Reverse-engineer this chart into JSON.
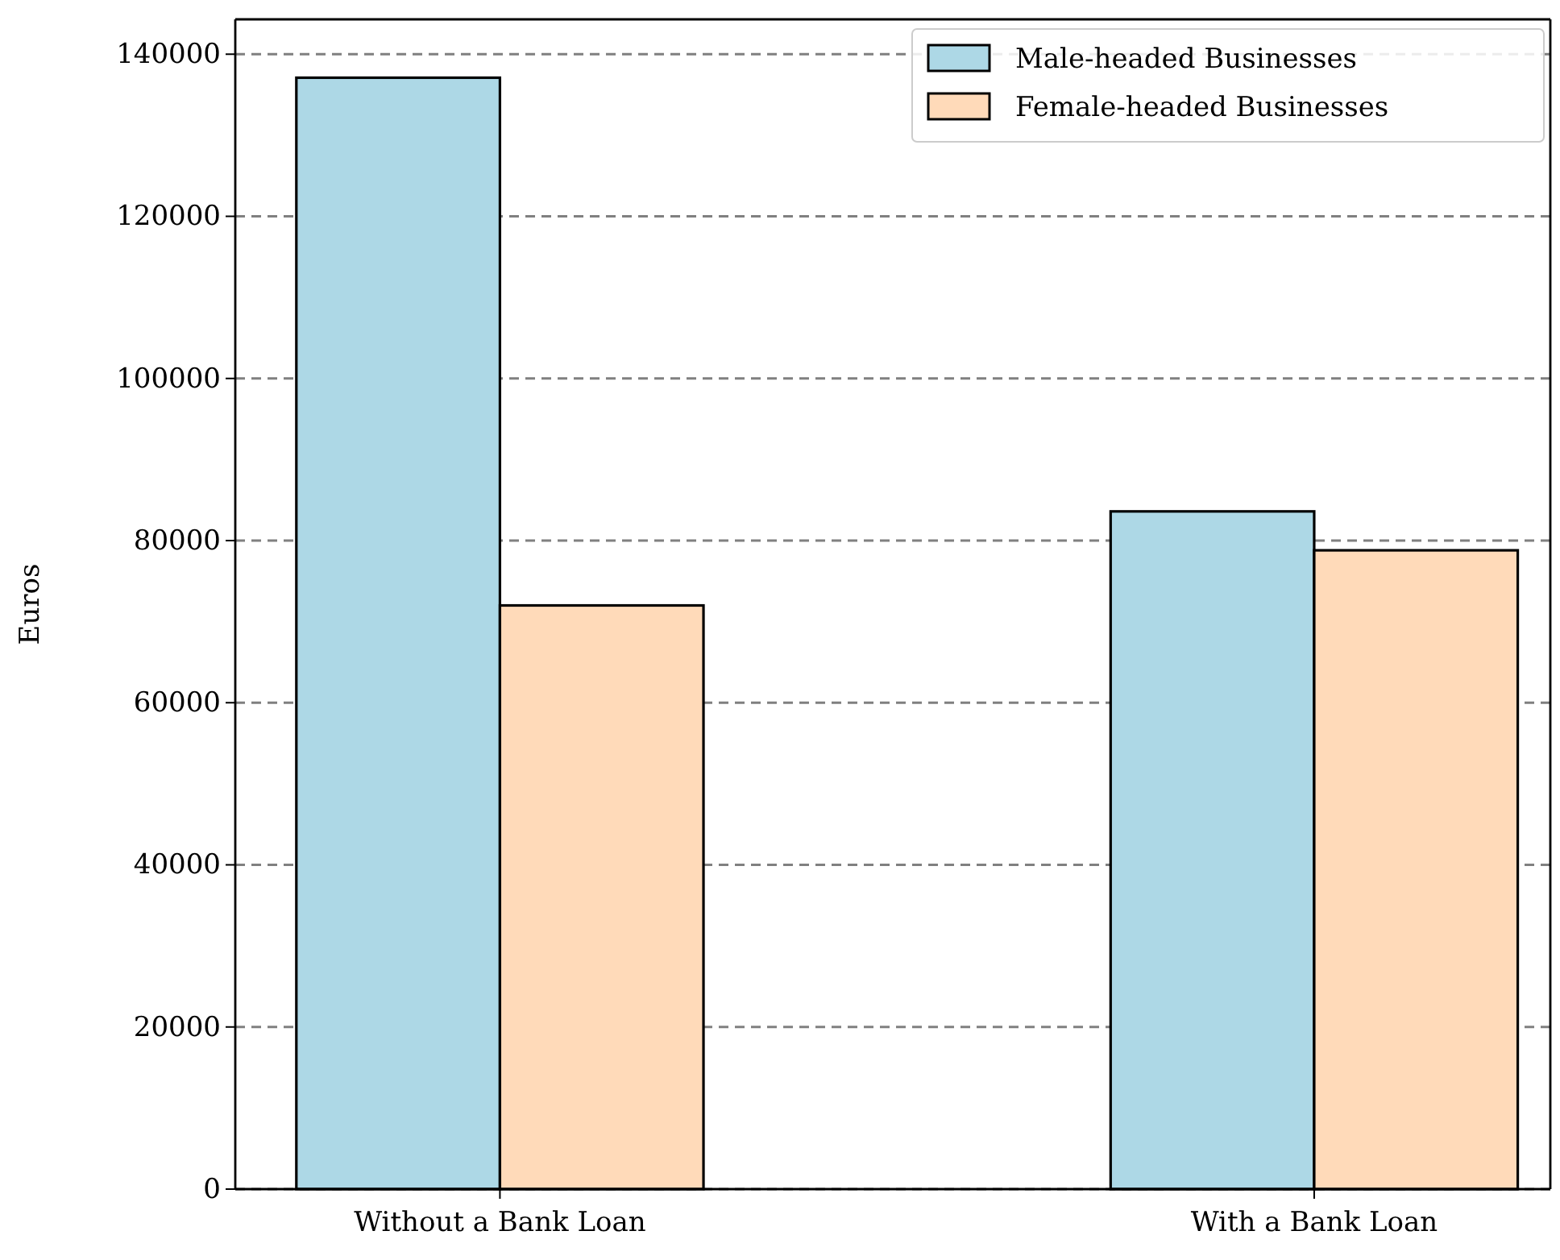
{
  "chart_data": {
    "type": "bar",
    "ylabel": "Euros",
    "categories": [
      "Without a Bank Loan",
      "With a Bank Loan"
    ],
    "series": [
      {
        "name": "Male-headed Businesses",
        "color": "#add8e6",
        "values": [
          137100,
          83600
        ]
      },
      {
        "name": "Female-headed Businesses",
        "color": "#ffdab9",
        "values": [
          72000,
          78800
        ]
      }
    ],
    "ylim": [
      0,
      144300
    ],
    "yticks": [
      0,
      20000,
      40000,
      60000,
      80000,
      100000,
      120000,
      140000
    ],
    "grid": "y",
    "legend": "top right"
  }
}
